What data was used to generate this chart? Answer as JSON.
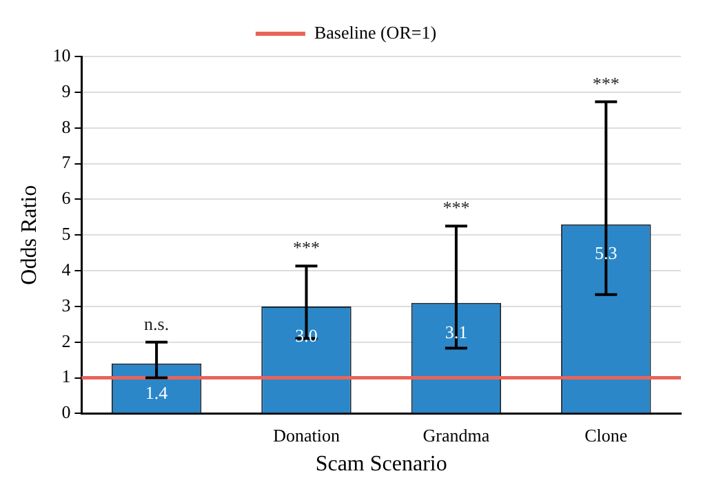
{
  "chart_data": {
    "type": "bar",
    "xlabel": "Scam Scenario",
    "ylabel": "Odds Ratio",
    "categories": [
      null,
      "Donation",
      "Grandma",
      "Clone"
    ],
    "values": [
      1.4,
      3.0,
      3.1,
      5.3
    ],
    "color": "#2b87c8",
    "errors": [
      [
        1.0,
        2.0
      ],
      [
        2.1,
        4.13
      ],
      [
        1.83,
        5.25
      ],
      [
        3.33,
        8.73
      ]
    ],
    "value_labels": [
      "1.4",
      "3.0",
      "3.1",
      "5.3"
    ],
    "annotations": [
      "n.s.",
      "***",
      "***",
      "***"
    ],
    "ref_lines": [
      {
        "axis": "y",
        "value": 1,
        "label": "Baseline (OR=1)",
        "color": "#e8645a"
      }
    ],
    "ylim": [
      0,
      10
    ],
    "yticks": [
      0,
      1,
      2,
      3,
      4,
      5,
      6,
      7,
      8,
      9,
      10
    ],
    "grid": "y",
    "legend": "top"
  }
}
